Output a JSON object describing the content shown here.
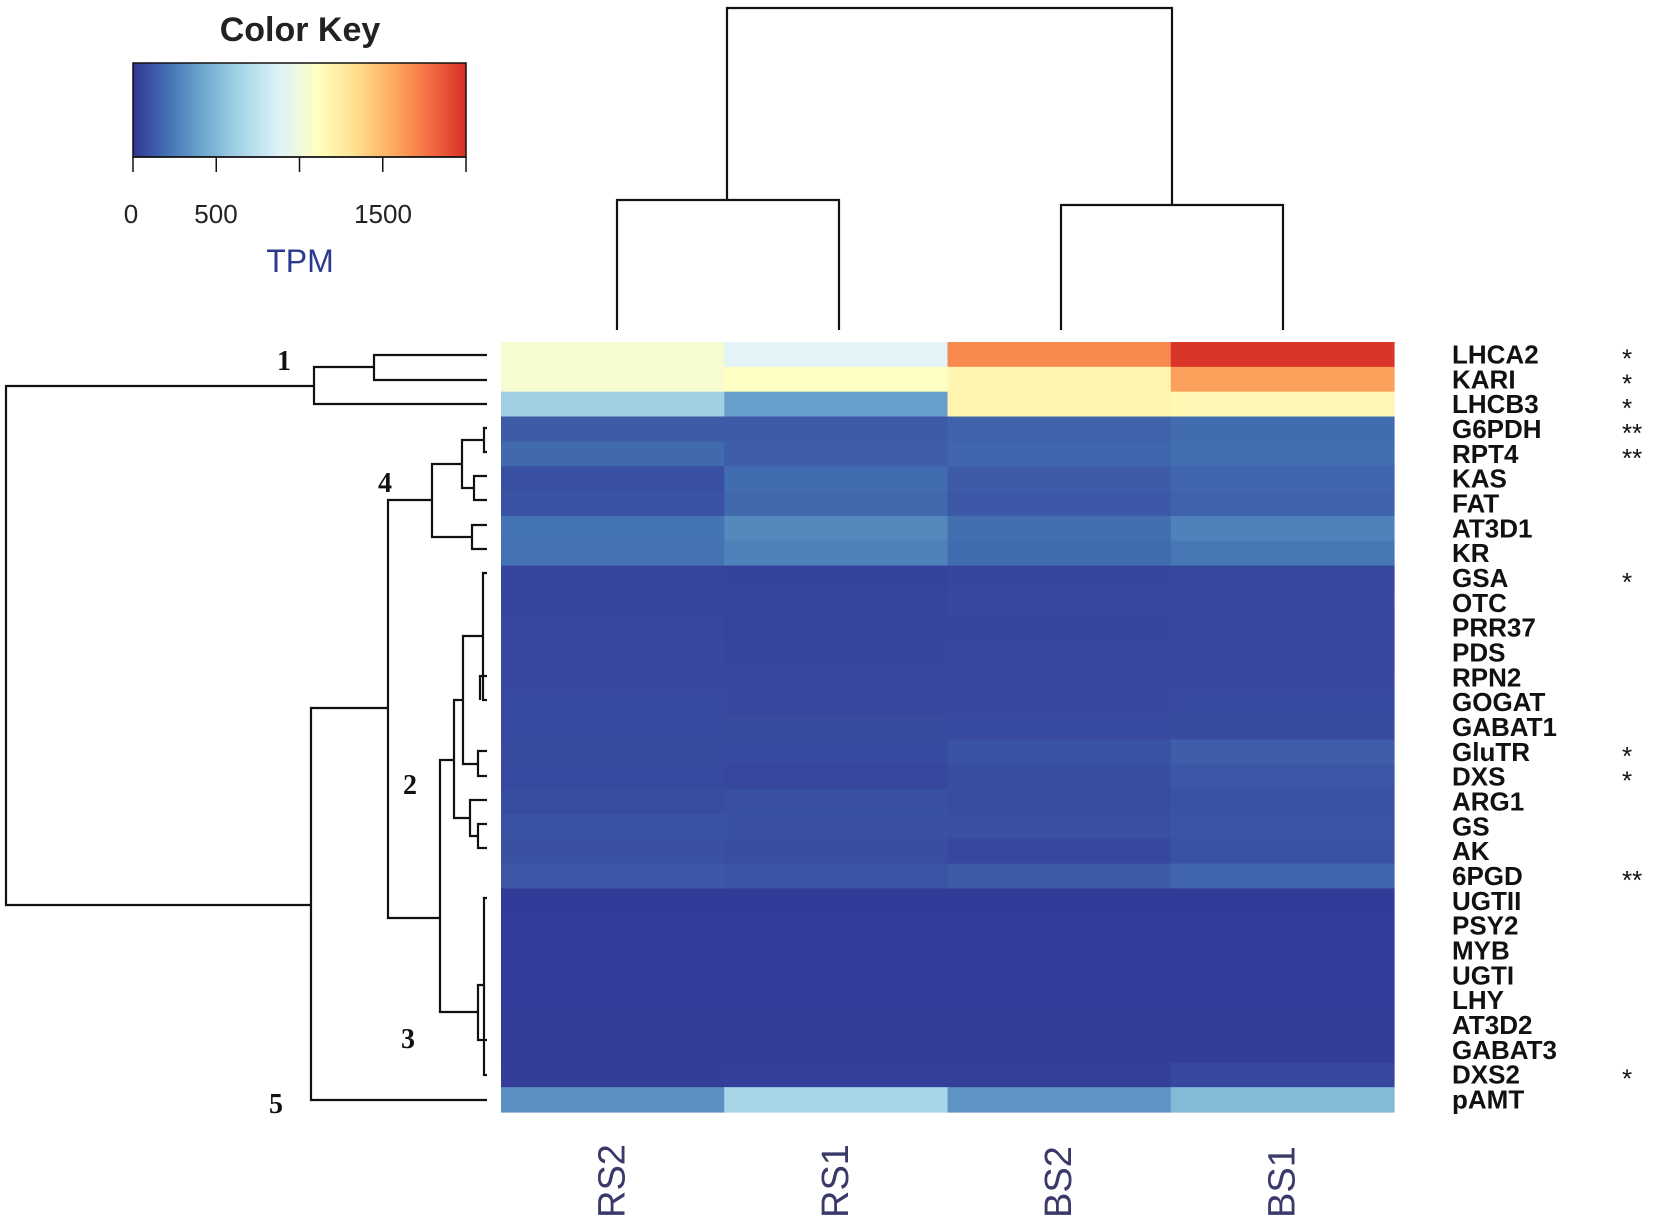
{
  "chart_data": {
    "type": "heatmap",
    "color_key": {
      "title": "Color Key",
      "label": "TPM",
      "ticks": [
        "0",
        "500",
        "1500"
      ],
      "range": [
        0,
        2000
      ],
      "colors": [
        "#313695",
        "#4575b4",
        "#74add1",
        "#abd9e9",
        "#e0f3f8",
        "#ffffbf",
        "#fee090",
        "#fdae61",
        "#f46d43",
        "#d73027"
      ]
    },
    "columns": [
      "RS2",
      "RS1",
      "BS2",
      "BS1"
    ],
    "rows": [
      {
        "gene": "LHCA2",
        "sig": "*",
        "values": [
          1050,
          900,
          1680,
          1980
        ]
      },
      {
        "gene": "KARI",
        "sig": "*",
        "values": [
          1050,
          1100,
          1180,
          1600
        ]
      },
      {
        "gene": "LHCB3",
        "sig": "*",
        "values": [
          620,
          390,
          1190,
          1160
        ]
      },
      {
        "gene": "G6PDH",
        "sig": "**",
        "values": [
          130,
          130,
          160,
          190
        ]
      },
      {
        "gene": "RPT4",
        "sig": "**",
        "values": [
          180,
          140,
          170,
          200
        ]
      },
      {
        "gene": "KAS",
        "sig": "",
        "values": [
          90,
          190,
          130,
          170
        ]
      },
      {
        "gene": "FAT",
        "sig": "",
        "values": [
          100,
          180,
          120,
          160
        ]
      },
      {
        "gene": "AT3D1",
        "sig": "",
        "values": [
          220,
          300,
          200,
          270
        ]
      },
      {
        "gene": "KR",
        "sig": "",
        "values": [
          210,
          270,
          190,
          230
        ]
      },
      {
        "gene": "GSA",
        "sig": "*",
        "values": [
          50,
          45,
          55,
          60
        ]
      },
      {
        "gene": "OTC",
        "sig": "",
        "values": [
          55,
          50,
          60,
          62
        ]
      },
      {
        "gene": "PRR37",
        "sig": "",
        "values": [
          60,
          50,
          58,
          60
        ]
      },
      {
        "gene": "PDS",
        "sig": "",
        "values": [
          62,
          55,
          60,
          60
        ]
      },
      {
        "gene": "RPN2",
        "sig": "",
        "values": [
          65,
          60,
          62,
          65
        ]
      },
      {
        "gene": "GOGAT",
        "sig": "",
        "values": [
          70,
          62,
          65,
          70
        ]
      },
      {
        "gene": "GABAT1",
        "sig": "",
        "values": [
          70,
          75,
          70,
          75
        ]
      },
      {
        "gene": "GluTR",
        "sig": "*",
        "values": [
          75,
          70,
          100,
          140
        ]
      },
      {
        "gene": "DXS",
        "sig": "*",
        "values": [
          70,
          60,
          80,
          115
        ]
      },
      {
        "gene": "ARG1",
        "sig": "",
        "values": [
          80,
          90,
          80,
          100
        ]
      },
      {
        "gene": "GS",
        "sig": "",
        "values": [
          100,
          95,
          90,
          110
        ]
      },
      {
        "gene": "AK",
        "sig": "",
        "values": [
          95,
          85,
          60,
          100
        ]
      },
      {
        "gene": "6PGD",
        "sig": "**",
        "values": [
          120,
          110,
          130,
          170
        ]
      },
      {
        "gene": "UGTII",
        "sig": "",
        "values": [
          18,
          18,
          18,
          18
        ]
      },
      {
        "gene": "PSY2",
        "sig": "",
        "values": [
          20,
          20,
          20,
          20
        ]
      },
      {
        "gene": "MYB",
        "sig": "",
        "values": [
          20,
          20,
          20,
          20
        ]
      },
      {
        "gene": "UGTI",
        "sig": "",
        "values": [
          22,
          22,
          22,
          22
        ]
      },
      {
        "gene": "LHY",
        "sig": "",
        "values": [
          22,
          22,
          22,
          22
        ]
      },
      {
        "gene": "AT3D2",
        "sig": "",
        "values": [
          24,
          24,
          24,
          24
        ]
      },
      {
        "gene": "GABAT3",
        "sig": "",
        "values": [
          25,
          25,
          25,
          25
        ]
      },
      {
        "gene": "DXS2",
        "sig": "*",
        "values": [
          28,
          30,
          32,
          60
        ]
      },
      {
        "gene": "pAMT",
        "sig": "",
        "values": [
          330,
          650,
          340,
          510
        ]
      }
    ],
    "cluster_labels": [
      "1",
      "4",
      "2",
      "3",
      "5"
    ]
  }
}
